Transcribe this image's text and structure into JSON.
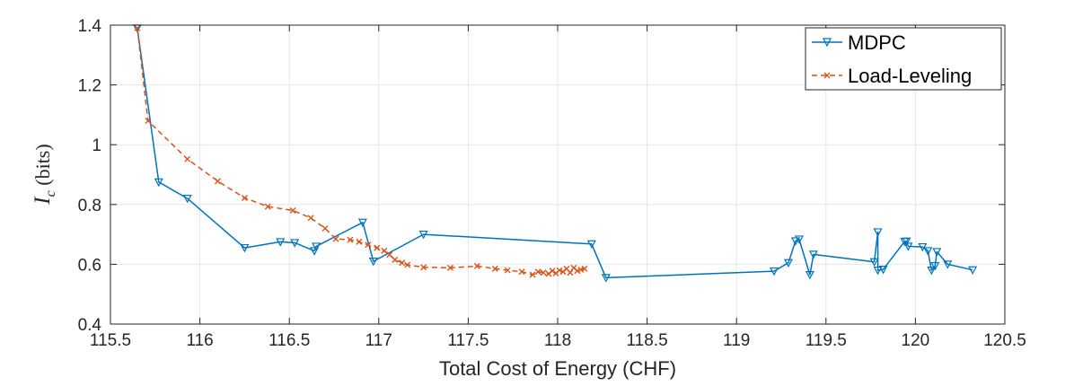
{
  "chart_data": {
    "type": "line",
    "xlabel": "Total Cost of Energy (CHF)",
    "ylabel": "I_c (bits)",
    "ylabel_main": "I",
    "ylabel_sub": "c",
    "ylabel_unit": " (bits)",
    "xlim": [
      115.5,
      120.5
    ],
    "ylim": [
      0.4,
      1.4
    ],
    "xticks": [
      115.5,
      116,
      116.5,
      117,
      117.5,
      118,
      118.5,
      119,
      119.5,
      120,
      120.5
    ],
    "xtick_labels": [
      "115.5",
      "116",
      "116.5",
      "117",
      "117.5",
      "118",
      "118.5",
      "119",
      "119.5",
      "120",
      "120.5"
    ],
    "yticks": [
      0.4,
      0.6,
      0.8,
      1.0,
      1.2,
      1.4
    ],
    "ytick_labels": [
      "0.4",
      "0.6",
      "0.8",
      "1",
      "1.2",
      "1.4"
    ],
    "grid": true,
    "legend_position": "top-right",
    "series": [
      {
        "name": "MDPC",
        "color": "#0072BD",
        "line_style": "solid",
        "marker": "triangle-down",
        "x": [
          115.65,
          115.77,
          115.93,
          116.25,
          116.45,
          116.53,
          116.64,
          116.65,
          116.91,
          116.97,
          117.25,
          118.19,
          118.27,
          119.21,
          119.29,
          119.33,
          119.35,
          119.41,
          119.43,
          119.77,
          119.79,
          119.79,
          119.82,
          119.94,
          119.95,
          119.96,
          120.04,
          120.07,
          120.09,
          120.11,
          120.12,
          120.18,
          120.32
        ],
        "y": [
          1.39,
          0.875,
          0.82,
          0.655,
          0.675,
          0.672,
          0.645,
          0.66,
          0.74,
          0.61,
          0.7,
          0.668,
          0.555,
          0.577,
          0.605,
          0.678,
          0.684,
          0.565,
          0.633,
          0.608,
          0.708,
          0.58,
          0.583,
          0.676,
          0.677,
          0.66,
          0.658,
          0.645,
          0.58,
          0.595,
          0.642,
          0.6,
          0.581
        ]
      },
      {
        "name": "Load-Leveling",
        "color": "#D95319",
        "line_style": "dashed",
        "marker": "x",
        "x": [
          115.65,
          115.71,
          115.93,
          116.1,
          116.25,
          116.38,
          116.52,
          116.62,
          116.7,
          116.76,
          116.84,
          116.89,
          116.94,
          116.99,
          117.03,
          117.06,
          117.09,
          117.13,
          117.16,
          117.25,
          117.4,
          117.55,
          117.65,
          117.72,
          117.8,
          117.86,
          117.89,
          117.92,
          117.95,
          117.97,
          117.99,
          118.01,
          118.03,
          118.05,
          118.07,
          118.09,
          118.11,
          118.13,
          118.15
        ],
        "y": [
          1.39,
          1.08,
          0.952,
          0.878,
          0.822,
          0.793,
          0.78,
          0.755,
          0.72,
          0.685,
          0.682,
          0.675,
          0.665,
          0.655,
          0.645,
          0.632,
          0.615,
          0.605,
          0.598,
          0.59,
          0.588,
          0.594,
          0.585,
          0.58,
          0.575,
          0.565,
          0.575,
          0.572,
          0.568,
          0.578,
          0.57,
          0.58,
          0.575,
          0.585,
          0.572,
          0.588,
          0.578,
          0.582,
          0.585
        ]
      }
    ]
  }
}
